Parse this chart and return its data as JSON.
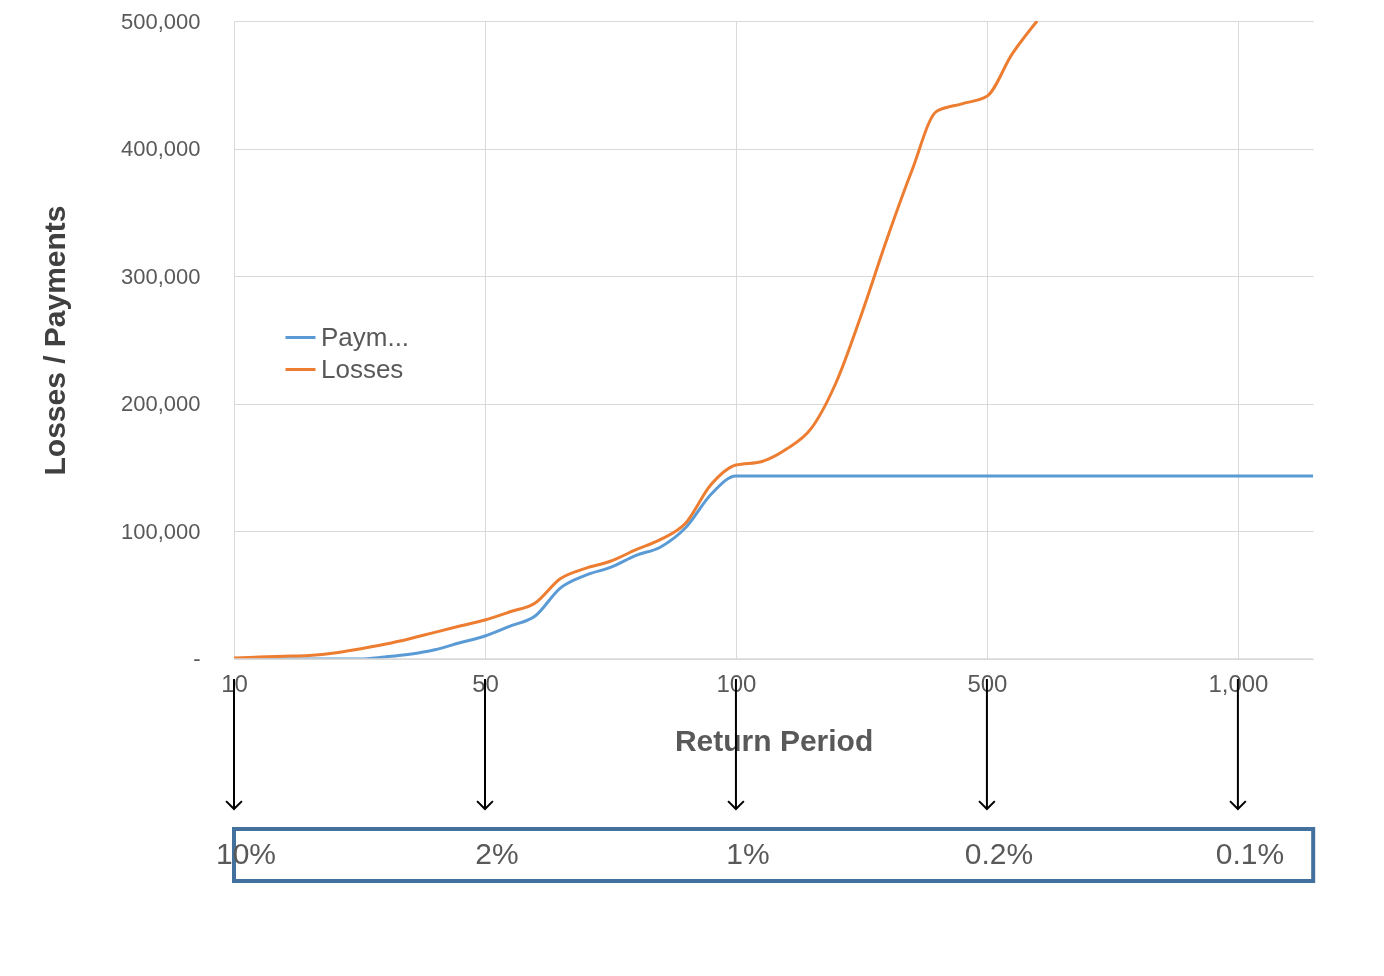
{
  "chart_data": {
    "type": "line",
    "xlabel": "Return Period",
    "ylabel": "Losses / Payments",
    "categories": [
      "10",
      null,
      null,
      null,
      null,
      null,
      null,
      null,
      null,
      null,
      "50",
      null,
      null,
      null,
      null,
      null,
      null,
      null,
      null,
      null,
      "100",
      null,
      null,
      null,
      null,
      null,
      null,
      null,
      null,
      null,
      "500",
      null,
      null,
      null,
      null,
      null,
      null,
      null,
      null,
      null,
      "1,000",
      null,
      null,
      null
    ],
    "ylim": [
      0,
      500000
    ],
    "yticks": [
      {
        "value": 0,
        "label": "-"
      },
      {
        "value": 100000,
        "label": "100,000"
      },
      {
        "value": 200000,
        "label": "200,000"
      },
      {
        "value": 300000,
        "label": "300,000"
      },
      {
        "value": 400000,
        "label": "400,000"
      },
      {
        "value": 500000,
        "label": "500,000"
      }
    ],
    "grid": true,
    "legend": "left",
    "line_style": "solid",
    "annotations": [
      "10%",
      "2%",
      "1%",
      "0.2%",
      "0.1%"
    ],
    "series": [
      {
        "name": "Paym...",
        "color": "#5b9bd5",
        "values": [
          0,
          0,
          0,
          0,
          0,
          0,
          1600,
          3700,
          7200,
          12700,
          18000,
          25800,
          33700,
          55600,
          65600,
          71800,
          81100,
          87800,
          103000,
          128900,
          143400,
          143400,
          143400,
          143400,
          143400,
          143400,
          143400,
          143400,
          143400,
          143400,
          143400,
          143400,
          143400,
          143400,
          143400,
          143400,
          143400,
          143400,
          143400,
          143400,
          143400,
          143400,
          143400,
          143400
        ]
      },
      {
        "name": "Losses",
        "color": "#ed7d31",
        "values": [
          800,
          1500,
          2100,
          2800,
          4700,
          7900,
          11500,
          15900,
          20900,
          25800,
          30600,
          37000,
          43900,
          62900,
          71000,
          76600,
          85500,
          93700,
          106600,
          136500,
          152000,
          154600,
          164400,
          180700,
          217100,
          270000,
          328200,
          382200,
          429300,
          435100,
          441000,
          474000,
          500000,
          null,
          null,
          null,
          null,
          null,
          null,
          null,
          null,
          null,
          null,
          null
        ]
      }
    ]
  }
}
